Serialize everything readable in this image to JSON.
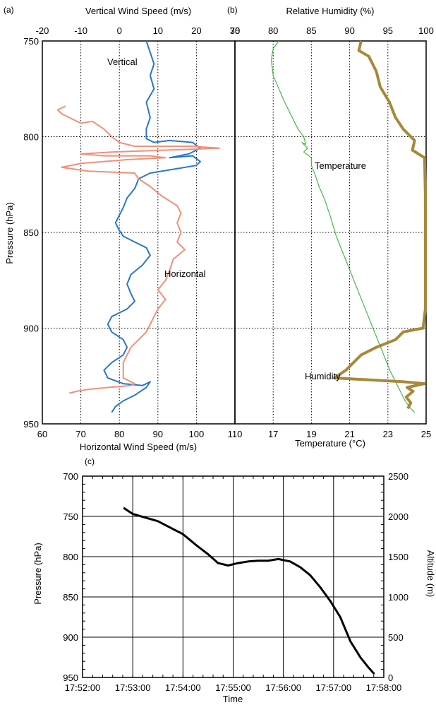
{
  "panel_a": {
    "letter": "(a)",
    "top_axis_label": "Vertical Wind Speed (m/s)",
    "bottom_axis_label": "Horizontal Wind Speed (m/s)",
    "left_axis_label": "Pressure (hPa)",
    "vertical_label": "Vertical",
    "horizontal_label": "Horizontal"
  },
  "panel_b": {
    "letter": "(b)",
    "top_axis_label": "Relative Humidity (%)",
    "bottom_axis_label": "Temperature (°C)",
    "temperature_label": "Temperature",
    "humidity_label": "Humidity"
  },
  "panel_c": {
    "letter": "(c)",
    "left_axis_label": "Pressure (hPa)",
    "right_axis_label": "Altitude (m)",
    "bottom_axis_label": "Time"
  },
  "colors": {
    "vertical": "#2878c8",
    "horizontal": "#f0907a",
    "temperature": "#4bb84b",
    "humidity": "#a8883a",
    "pressure": "#000000"
  },
  "chart_data": [
    {
      "panel": "a",
      "type": "line",
      "ylabel": "Pressure (hPa)",
      "ylim": [
        950,
        750
      ],
      "yticks": [
        750,
        800,
        850,
        900,
        950
      ],
      "x_top_label": "Vertical Wind Speed (m/s)",
      "x_top_lim": [
        -20,
        30
      ],
      "x_top_ticks": [
        -20,
        -10,
        0,
        10,
        20,
        30
      ],
      "x_bottom_label": "Horizontal Wind Speed (m/s)",
      "x_bottom_lim": [
        60,
        110
      ],
      "x_bottom_ticks": [
        60,
        70,
        80,
        90,
        100,
        110
      ],
      "grid": true,
      "series": [
        {
          "name": "Vertical",
          "axis": "top",
          "color": "#2878c8",
          "points": [
            [
              7,
              750
            ],
            [
              8,
              756
            ],
            [
              9,
              762
            ],
            [
              8,
              768
            ],
            [
              9,
              775
            ],
            [
              7,
              782
            ],
            [
              8,
              790
            ],
            [
              7,
              796
            ],
            [
              7,
              801
            ],
            [
              9,
              803
            ],
            [
              13,
              802
            ],
            [
              19,
              803
            ],
            [
              21,
              806
            ],
            [
              18,
              809
            ],
            [
              13,
              811
            ],
            [
              19,
              810
            ],
            [
              21,
              813
            ],
            [
              20,
              815
            ],
            [
              14,
              817
            ],
            [
              8,
              819
            ],
            [
              5,
              822
            ],
            [
              4,
              827
            ],
            [
              2,
              832
            ],
            [
              1,
              837
            ],
            [
              0,
              841
            ],
            [
              -1,
              845
            ],
            [
              0,
              849
            ],
            [
              1,
              852
            ],
            [
              4,
              855
            ],
            [
              7,
              858
            ],
            [
              8,
              862
            ],
            [
              6,
              867
            ],
            [
              3,
              872
            ],
            [
              2,
              877
            ],
            [
              3,
              882
            ],
            [
              4,
              886
            ],
            [
              2,
              890
            ],
            [
              -2,
              894
            ],
            [
              -3,
              898
            ],
            [
              -2,
              902
            ],
            [
              1,
              906
            ],
            [
              2,
              910
            ],
            [
              1,
              914
            ],
            [
              -2,
              918
            ],
            [
              -4,
              922
            ],
            [
              -3,
              926
            ],
            [
              1,
              929
            ],
            [
              6,
              930
            ],
            [
              8,
              928
            ],
            [
              7,
              931
            ],
            [
              4,
              935
            ],
            [
              1,
              938
            ],
            [
              -1,
              941
            ],
            [
              -2,
              944
            ]
          ]
        },
        {
          "name": "Horizontal",
          "axis": "bottom",
          "color": "#f0907a",
          "points": [
            [
              66,
              784
            ],
            [
              64,
              786
            ],
            [
              65,
              788
            ],
            [
              70,
              793
            ],
            [
              73,
              792
            ],
            [
              76,
              796
            ],
            [
              78,
              800
            ],
            [
              80,
              803
            ],
            [
              84,
              805
            ],
            [
              99,
              805
            ],
            [
              106,
              806
            ],
            [
              92,
              807
            ],
            [
              78,
              808
            ],
            [
              70,
              809
            ],
            [
              76,
              810
            ],
            [
              88,
              810
            ],
            [
              92,
              811
            ],
            [
              82,
              812
            ],
            [
              70,
              814
            ],
            [
              65,
              816
            ],
            [
              72,
              818
            ],
            [
              84,
              819
            ],
            [
              85,
              822
            ],
            [
              88,
              826
            ],
            [
              91,
              831
            ],
            [
              95,
              836
            ],
            [
              96,
              840
            ],
            [
              95,
              845
            ],
            [
              96,
              850
            ],
            [
              95,
              855
            ],
            [
              97,
              859
            ],
            [
              94,
              864
            ],
            [
              93,
              870
            ],
            [
              92,
              875
            ],
            [
              90,
              880
            ],
            [
              92,
              885
            ],
            [
              90,
              890
            ],
            [
              89,
              894
            ],
            [
              88,
              898
            ],
            [
              87,
              902
            ],
            [
              85,
              906
            ],
            [
              83,
              910
            ],
            [
              82,
              914
            ],
            [
              81,
              918
            ],
            [
              81,
              922
            ],
            [
              81,
              926
            ],
            [
              84,
              929
            ],
            [
              83,
              930
            ],
            [
              77,
              931
            ],
            [
              72,
              932
            ],
            [
              69,
              933
            ],
            [
              67,
              934
            ]
          ]
        }
      ]
    },
    {
      "panel": "b",
      "type": "line",
      "ylim": [
        950,
        750
      ],
      "yticks": [
        750,
        800,
        850,
        900,
        950
      ],
      "x_top_label": "Relative Humidity (%)",
      "x_top_lim": [
        75,
        100
      ],
      "x_top_ticks": [
        75,
        80,
        85,
        90,
        95,
        100
      ],
      "x_bottom_label": "Temperature (°C)",
      "x_bottom_lim": [
        15,
        25
      ],
      "x_bottom_ticks": [
        17,
        19,
        21,
        23,
        25
      ],
      "grid": true,
      "series": [
        {
          "name": "Temperature",
          "axis": "bottom",
          "color": "#4bb84b",
          "points": [
            [
              17.3,
              750
            ],
            [
              17.0,
              754
            ],
            [
              16.9,
              760
            ],
            [
              17.0,
              768
            ],
            [
              17.3,
              775
            ],
            [
              17.6,
              782
            ],
            [
              18.0,
              790
            ],
            [
              18.3,
              796
            ],
            [
              18.6,
              800
            ],
            [
              18.7,
              804
            ],
            [
              18.5,
              803
            ],
            [
              18.8,
              806
            ],
            [
              18.6,
              808
            ],
            [
              19.0,
              811
            ],
            [
              19.0,
              815
            ],
            [
              19.2,
              820
            ],
            [
              19.4,
              826
            ],
            [
              19.7,
              833
            ],
            [
              20.0,
              842
            ],
            [
              20.3,
              852
            ],
            [
              20.7,
              862
            ],
            [
              21.1,
              872
            ],
            [
              21.5,
              882
            ],
            [
              21.9,
              892
            ],
            [
              22.3,
              902
            ],
            [
              22.7,
              912
            ],
            [
              23.1,
              922
            ],
            [
              23.5,
              930
            ],
            [
              23.9,
              938
            ],
            [
              24.2,
              942
            ],
            [
              24.4,
              944
            ]
          ]
        },
        {
          "name": "Humidity",
          "axis": "top",
          "color": "#a8883a",
          "points": [
            [
              91.5,
              750
            ],
            [
              91.2,
              755
            ],
            [
              92.5,
              758
            ],
            [
              93.5,
              766
            ],
            [
              94.0,
              774
            ],
            [
              95.2,
              782
            ],
            [
              96.0,
              790
            ],
            [
              97.0,
              796
            ],
            [
              98.5,
              802
            ],
            [
              98.2,
              807
            ],
            [
              99.8,
              811
            ],
            [
              99.9,
              830
            ],
            [
              99.9,
              860
            ],
            [
              99.9,
              890
            ],
            [
              99.6,
              900
            ],
            [
              97.0,
              902
            ],
            [
              96.0,
              906
            ],
            [
              93.5,
              910
            ],
            [
              91.5,
              914
            ],
            [
              90.5,
              918
            ],
            [
              89.5,
              922
            ],
            [
              88.0,
              926
            ],
            [
              97.0,
              928
            ],
            [
              99.8,
              929
            ],
            [
              97.5,
              931
            ],
            [
              98.3,
              933
            ],
            [
              97.4,
              936
            ],
            [
              98.0,
              939
            ],
            [
              97.6,
              942
            ]
          ]
        }
      ]
    },
    {
      "panel": "c",
      "type": "line",
      "xlabel": "Time",
      "xlim": [
        "17:52:00",
        "17:58:00"
      ],
      "xticks": [
        "17:52:00",
        "17:53:00",
        "17:54:00",
        "17:55:00",
        "17:56:00",
        "17:57:00",
        "17:58:00"
      ],
      "ylabel": "Pressure (hPa)",
      "ylim": [
        950,
        700
      ],
      "yticks": [
        700,
        750,
        800,
        850,
        900,
        950
      ],
      "y2label": "Altitude (m)",
      "y2lim": [
        0,
        2500
      ],
      "y2ticks": [
        0,
        500,
        1000,
        1500,
        2000,
        2500
      ],
      "grid": true,
      "series": [
        {
          "name": "",
          "color": "#000000",
          "points": [
            [
              "17:52:50",
              740
            ],
            [
              "17:53:00",
              747
            ],
            [
              "17:53:30",
              756
            ],
            [
              "17:54:00",
              772
            ],
            [
              "17:54:15",
              785
            ],
            [
              "17:54:30",
              797
            ],
            [
              "17:54:42",
              808
            ],
            [
              "17:54:54",
              811
            ],
            [
              "17:55:06",
              808
            ],
            [
              "17:55:18",
              806
            ],
            [
              "17:55:30",
              805
            ],
            [
              "17:55:42",
              805
            ],
            [
              "17:55:54",
              803
            ],
            [
              "17:56:08",
              806
            ],
            [
              "17:56:20",
              813
            ],
            [
              "17:56:32",
              823
            ],
            [
              "17:56:44",
              838
            ],
            [
              "17:56:56",
              855
            ],
            [
              "17:57:08",
              875
            ],
            [
              "17:57:20",
              905
            ],
            [
              "17:57:32",
              925
            ],
            [
              "17:57:42",
              938
            ],
            [
              "17:57:48",
              945
            ]
          ]
        }
      ]
    }
  ]
}
